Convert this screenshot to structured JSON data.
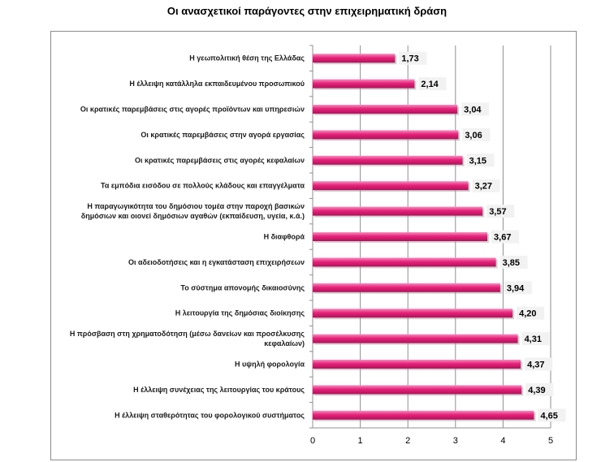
{
  "chart_data": {
    "type": "bar",
    "orientation": "horizontal",
    "title": "Οι ανασχετικοί παράγοντες στην επιχειρηματική δράση",
    "xlabel": "",
    "ylabel": "",
    "xlim": [
      0,
      5
    ],
    "xticks": [
      "0",
      "1",
      "2",
      "3",
      "4",
      "5"
    ],
    "grid": true,
    "legend": "none",
    "bar_color": "#e8217a",
    "categories": [
      "Η γεωπολιτική θέση της Ελλάδας",
      "Η έλλειψη κατάλληλα εκπαιδευμένου προσωπικού",
      "Οι κρατικές παρεμβάσεις στις αγορές προϊόντων και υπηρεσιών",
      "Οι κρατικές παρεμβάσεις στην αγορά εργασίας",
      "Οι κρατικές παρεμβάσεις στις αγορές κεφαλαίων",
      "Τα εμπόδια εισόδου σε πολλούς κλάδους και επαγγέλματα",
      "Η παραγωγικότητα του δημόσιου τομέα στην παροχή βασικών δημόσιων και οιονεί δημόσιων αγαθών (εκπαίδευση, υγεία, κ.ά.)",
      "Η διαφθορά",
      "Οι αδειοδοτήσεις και η εγκατάσταση επιχειρήσεων",
      "Το σύστημα απονομής δικαιοσύνης",
      "Η λειτουργία της δημόσιας διοίκησης",
      "Η πρόσβαση στη χρηματοδότηση (μέσω δανείων και προσέλκυσης κεφαλαίων)",
      "Η υψηλή φορολογία",
      "Η έλλειψη συνέχειας της λειτουργίας του κράτους",
      "Η έλλειψη σταθερότητας του φορολογικού συστήματος"
    ],
    "label_lines": [
      [
        "Η γεωπολιτική θέση της Ελλάδας"
      ],
      [
        "Η έλλειψη κατάλληλα εκπαιδευμένου προσωπικού"
      ],
      [
        "Οι κρατικές παρεμβάσεις στις αγορές προϊόντων και υπηρεσιών"
      ],
      [
        "Οι κρατικές παρεμβάσεις στην αγορά εργασίας"
      ],
      [
        "Οι κρατικές παρεμβάσεις στις αγορές κεφαλαίων"
      ],
      [
        "Τα εμπόδια εισόδου σε πολλούς κλάδους και επαγγέλματα"
      ],
      [
        "Η παραγωγικότητα του δημόσιου τομέα στην παροχή βασικών",
        "δημόσιων και οιονεί δημόσιων αγαθών (εκπαίδευση, υγεία, κ.ά.)"
      ],
      [
        "Η διαφθορά"
      ],
      [
        "Οι αδειοδοτήσεις και η εγκατάσταση επιχειρήσεων"
      ],
      [
        "Το σύστημα απονομής δικαιοσύνης"
      ],
      [
        "Η λειτουργία της δημόσιας διοίκησης"
      ],
      [
        "Η πρόσβαση στη χρηματοδότηση (μέσω δανείων και προσέλκυσης",
        "κεφαλαίων)"
      ],
      [
        "Η υψηλή φορολογία"
      ],
      [
        "Η έλλειψη συνέχειας της λειτουργίας του κράτους"
      ],
      [
        "Η έλλειψη σταθερότητας του φορολογικού συστήματος"
      ]
    ],
    "values": [
      1.73,
      2.14,
      3.04,
      3.06,
      3.15,
      3.27,
      3.57,
      3.67,
      3.85,
      3.94,
      4.2,
      4.31,
      4.37,
      4.39,
      4.65
    ],
    "value_labels": [
      "1,73",
      "2,14",
      "3,04",
      "3,06",
      "3,15",
      "3,27",
      "3,57",
      "3,67",
      "3,85",
      "3,94",
      "4,20",
      "4,31",
      "4,37",
      "4,39",
      "4,65"
    ]
  }
}
